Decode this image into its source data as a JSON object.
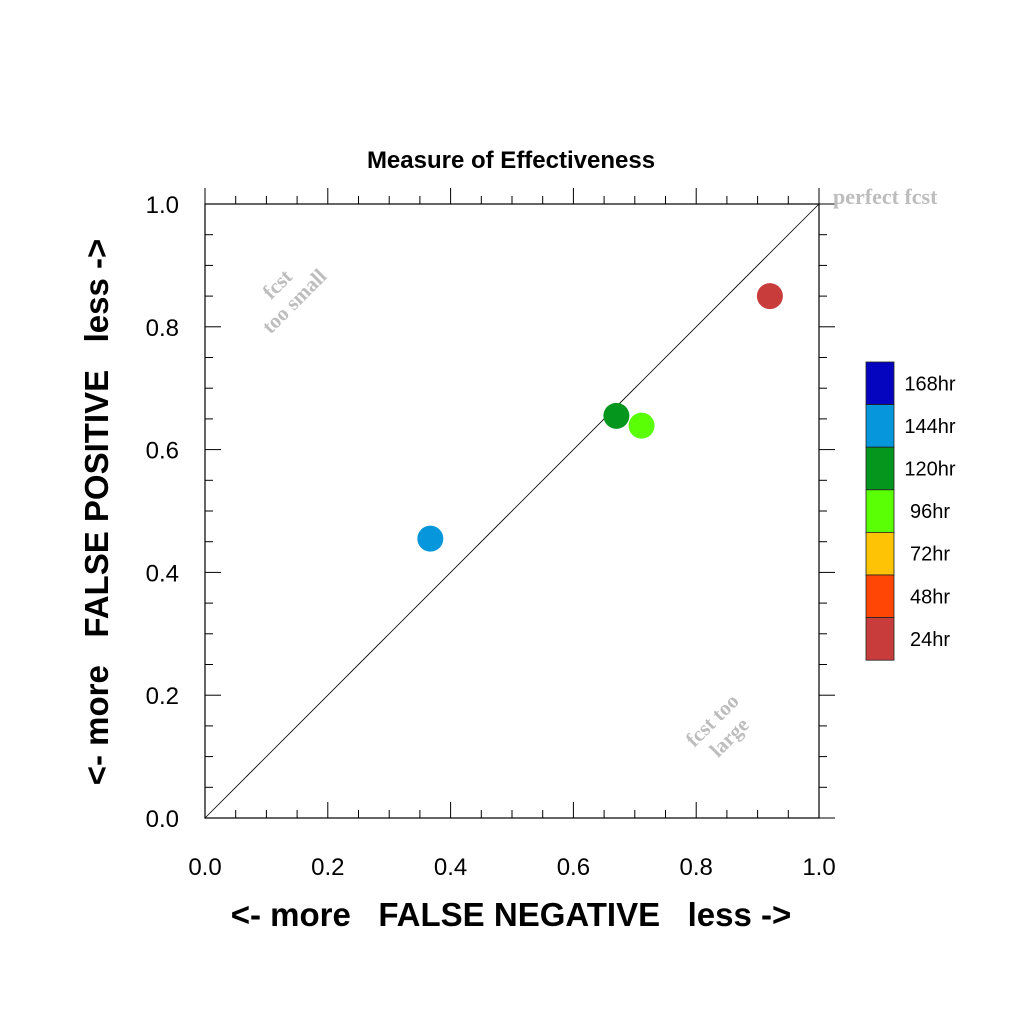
{
  "chart_data": {
    "type": "scatter",
    "title": "Measure of Effectiveness",
    "xlabel": "<- more   FALSE NEGATIVE   less ->",
    "ylabel": "<- more   FALSE POSITIVE   less ->",
    "xlim": [
      0.0,
      1.0
    ],
    "ylim": [
      0.0,
      1.0
    ],
    "x_ticks": [
      "0.0",
      "0.2",
      "0.4",
      "0.6",
      "0.8",
      "1.0"
    ],
    "y_ticks": [
      "0.0",
      "0.2",
      "0.4",
      "0.6",
      "0.8",
      "1.0"
    ],
    "grid": false,
    "reference_line": {
      "from": [
        0.0,
        0.0
      ],
      "to": [
        1.0,
        1.0
      ]
    },
    "annotations": {
      "perfect": "perfect fcst",
      "small_line1": "fcst",
      "small_line2": "too small",
      "large_line1": "fcst too",
      "large_line2": "large"
    },
    "legend": {
      "position": "right",
      "entries": [
        {
          "label": "168hr",
          "color": "#0505c0"
        },
        {
          "label": "144hr",
          "color": "#0596dc"
        },
        {
          "label": "120hr",
          "color": "#05961e"
        },
        {
          "label": "96hr",
          "color": "#5aff05"
        },
        {
          "label": "72hr",
          "color": "#ffc305"
        },
        {
          "label": "48hr",
          "color": "#ff4605"
        },
        {
          "label": "24hr",
          "color": "#c83c3c"
        }
      ]
    },
    "series": [
      {
        "name": "144hr",
        "x": 0.367,
        "y": 0.455,
        "color": "#0596dc"
      },
      {
        "name": "120hr",
        "x": 0.67,
        "y": 0.655,
        "color": "#05961e"
      },
      {
        "name": "96hr",
        "x": 0.711,
        "y": 0.639,
        "color": "#5aff05"
      },
      {
        "name": "24hr",
        "x": 0.92,
        "y": 0.85,
        "color": "#c83c3c"
      }
    ]
  }
}
